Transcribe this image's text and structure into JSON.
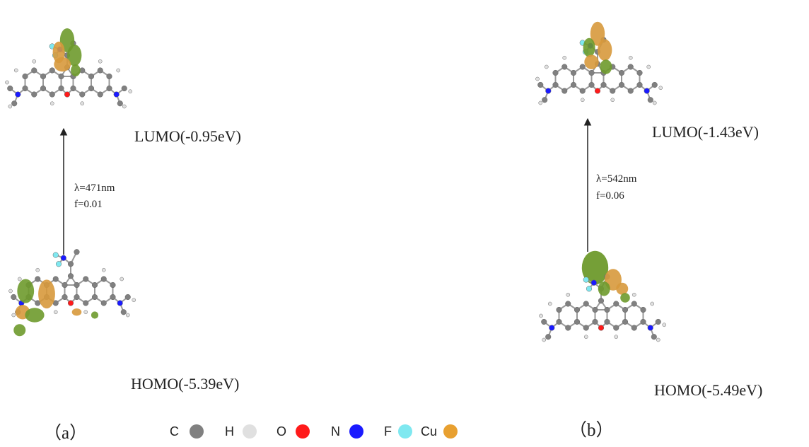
{
  "panels": [
    {
      "label": "（a）",
      "lumo": "LUMO(-0.95eV)",
      "homo": "HOMO(-5.39eV)",
      "transition": [
        "λ=471nm",
        "f=0.01"
      ]
    },
    {
      "label": "（b）",
      "lumo": "LUMO(-1.43eV)",
      "homo": "HOMO(-5.49eV)",
      "transition": [
        "λ=542nm",
        "f=0.06"
      ]
    }
  ],
  "legend": [
    {
      "name": "C",
      "color": "#808080"
    },
    {
      "name": "H",
      "color": "#e0e0e0"
    },
    {
      "name": "O",
      "color": "#ff1a1a"
    },
    {
      "name": "N",
      "color": "#1a1aff"
    },
    {
      "name": "F",
      "color": "#7fe8f0"
    },
    {
      "name": "Cu",
      "color": "#e8a030"
    }
  ]
}
